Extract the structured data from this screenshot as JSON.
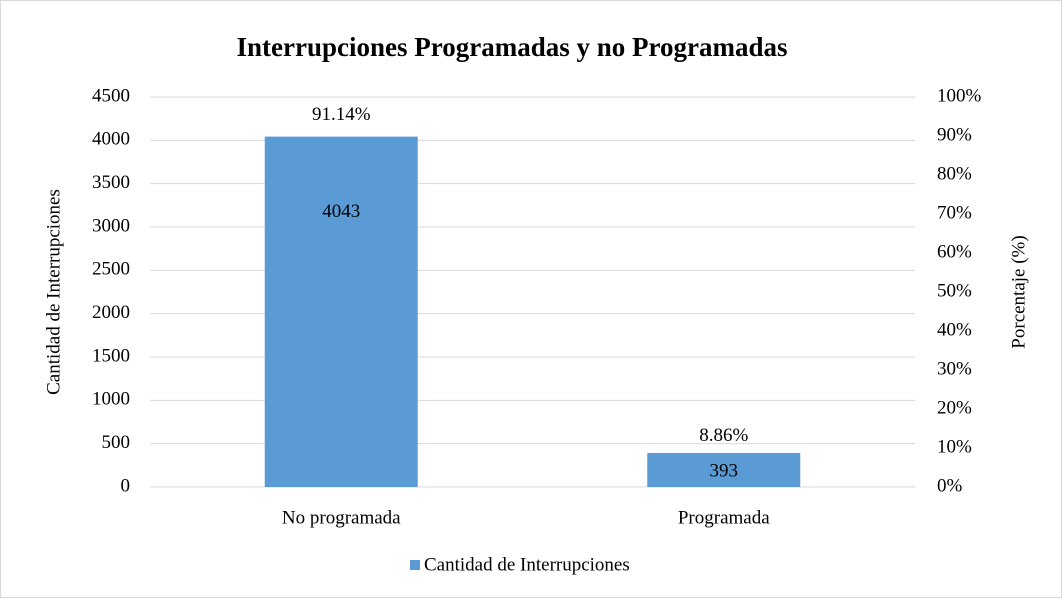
{
  "chart_data": {
    "type": "bar",
    "title": "Interrupciones Programadas y no Programadas",
    "y_label": "Cantidad de Interrupciones",
    "y2_label": "Porcentaje (%)",
    "categories": [
      "No programada",
      "Programada"
    ],
    "series": [
      {
        "name": "Cantidad de Interrupciones",
        "color": "#5b9bd5",
        "values": [
          4043,
          393
        ]
      }
    ],
    "percentages": {
      "axis": "y2",
      "values": [
        91.14,
        8.86
      ],
      "value_labels": [
        "91.14%",
        "8.86%"
      ]
    },
    "ylim": [
      0,
      4500
    ],
    "yticks": [
      0,
      500,
      1000,
      1500,
      2000,
      2500,
      3000,
      3500,
      4000,
      4500
    ],
    "y2lim": [
      0,
      100
    ],
    "y2ticks": [
      {
        "value": 0,
        "label": "0%"
      },
      {
        "value": 10,
        "label": "10%"
      },
      {
        "value": 20,
        "label": "20%"
      },
      {
        "value": 30,
        "label": "30%"
      },
      {
        "value": 40,
        "label": "40%"
      },
      {
        "value": 50,
        "label": "50%"
      },
      {
        "value": 60,
        "label": "60%"
      },
      {
        "value": 70,
        "label": "70%"
      },
      {
        "value": 80,
        "label": "80%"
      },
      {
        "value": 90,
        "label": "90%"
      },
      {
        "value": 100,
        "label": "100%"
      }
    ],
    "grid": true,
    "legend": "bottom"
  }
}
